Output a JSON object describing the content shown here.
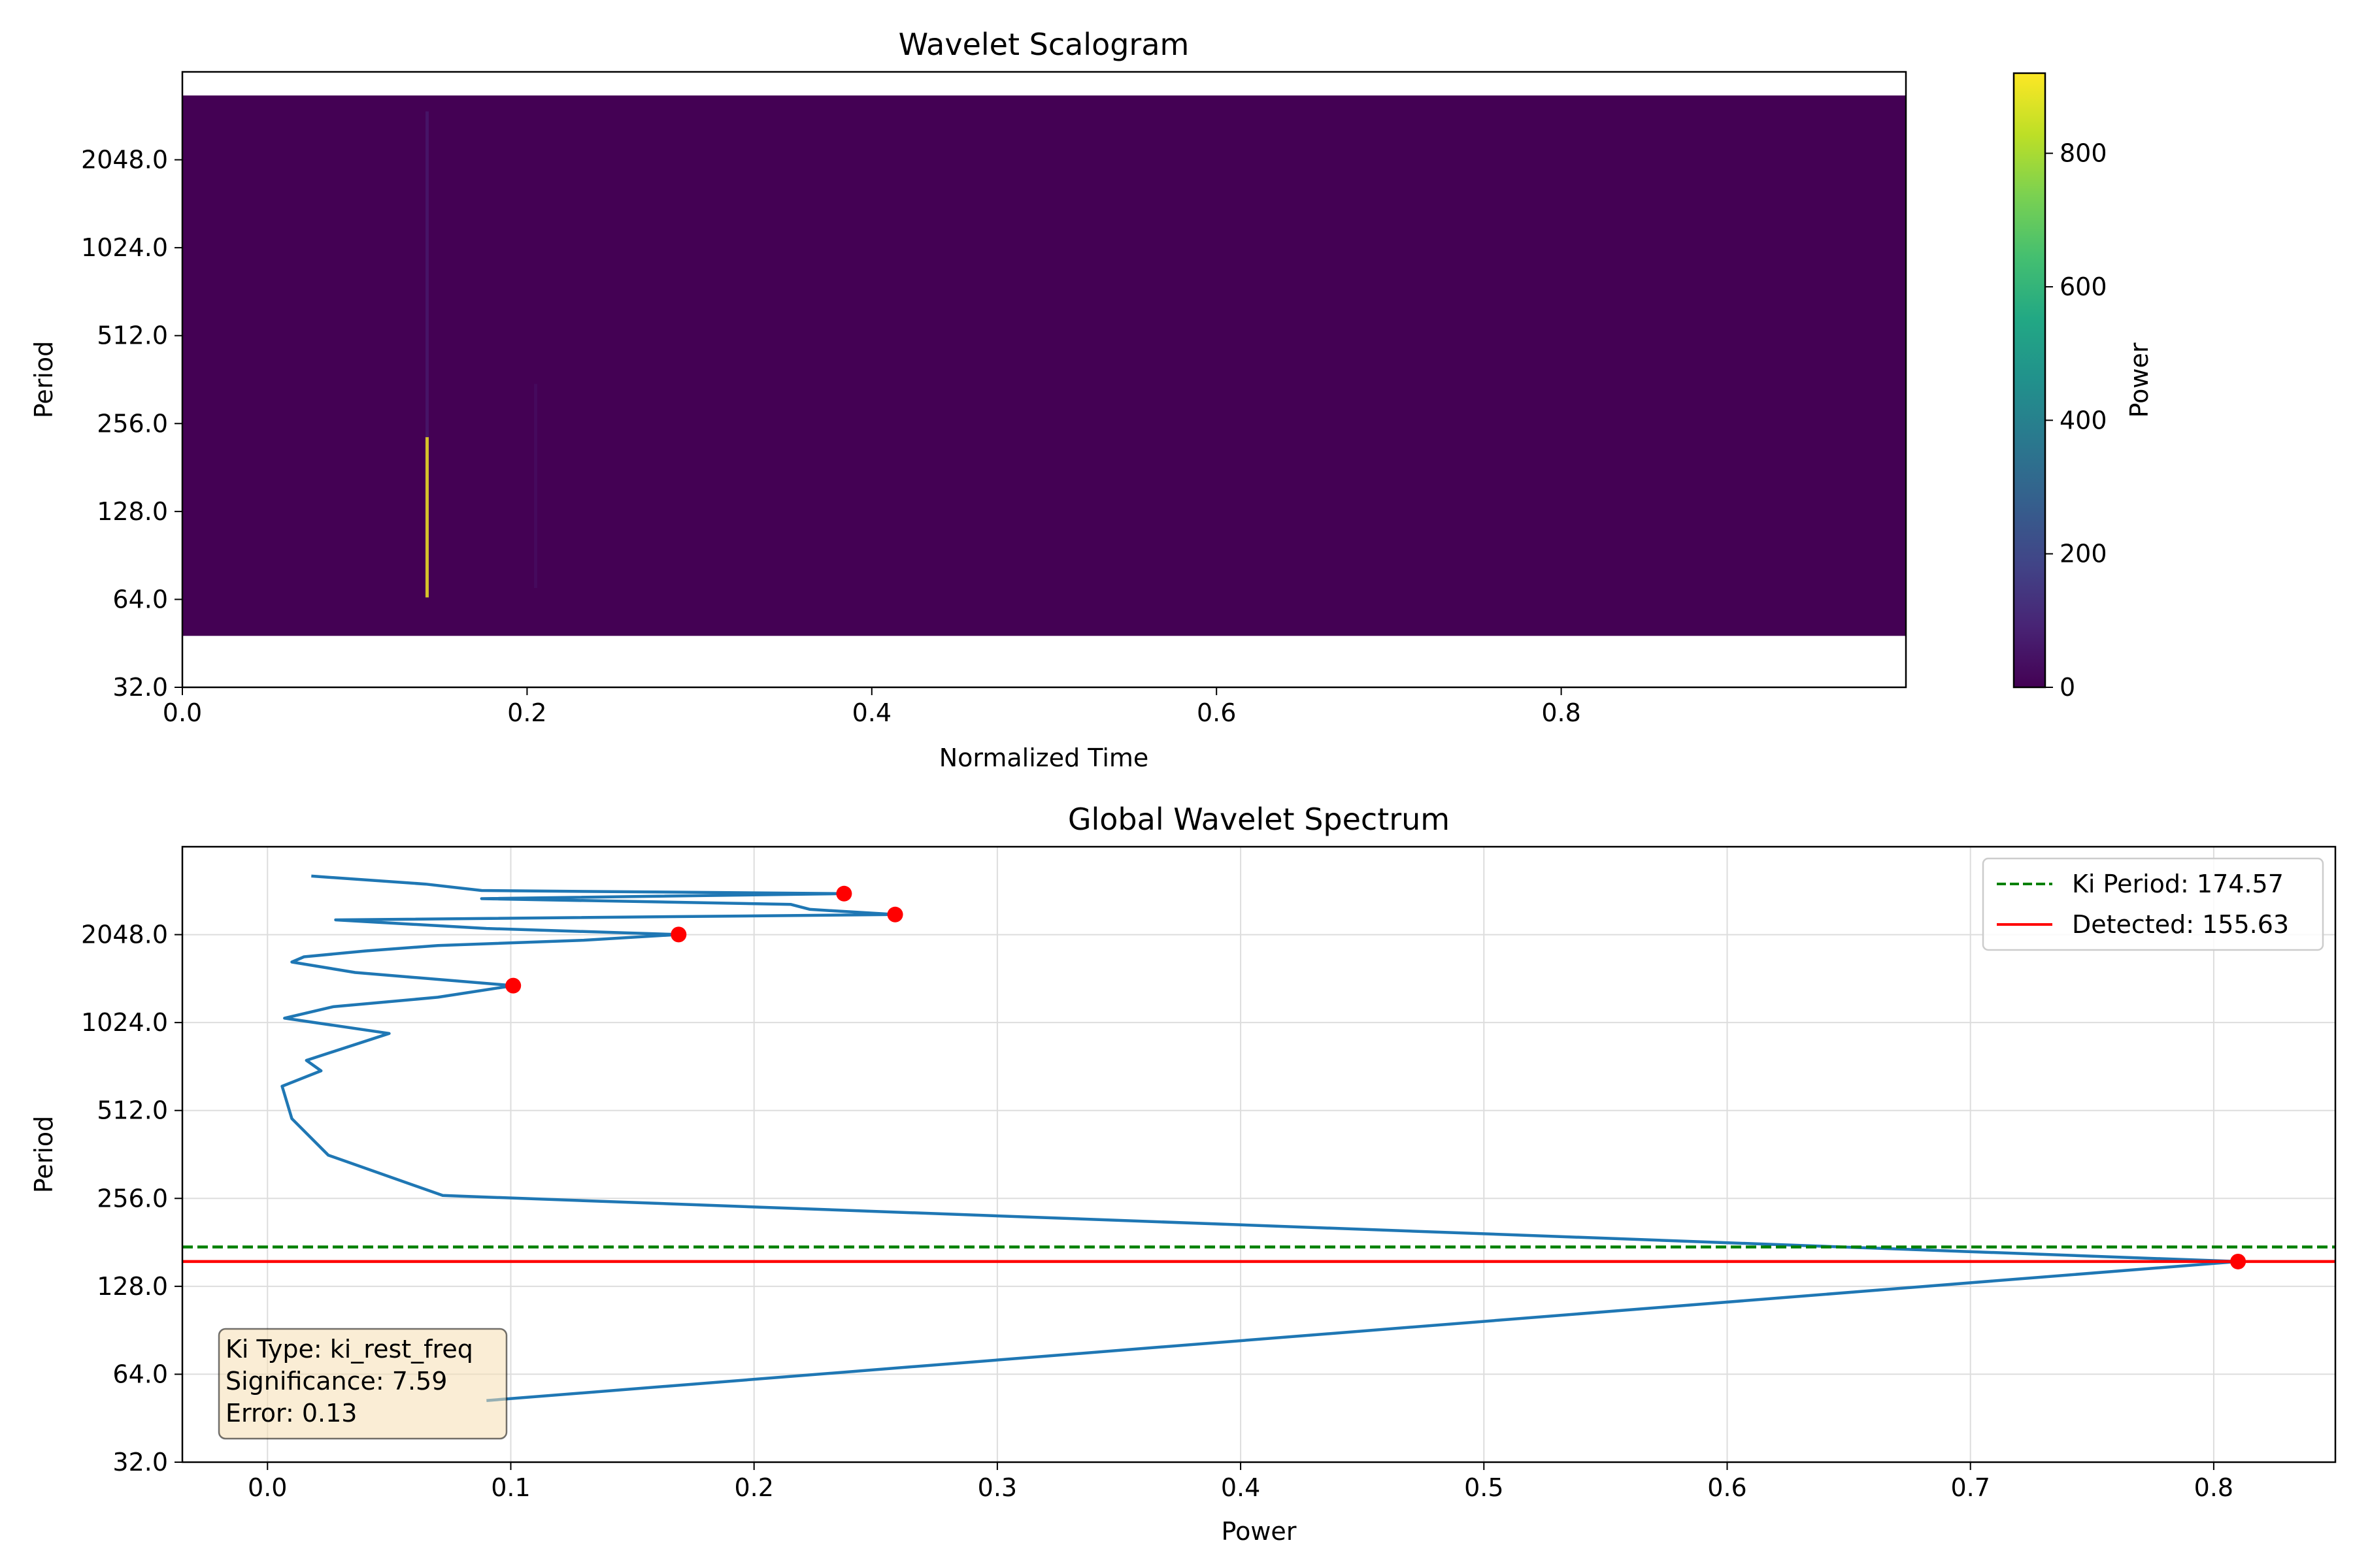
{
  "chart_data": [
    {
      "type": "heatmap",
      "title": "Wavelet Scalogram",
      "xlabel": "Normalized Time",
      "ylabel": "Period",
      "xlim": [
        0.0,
        1.0
      ],
      "ylim": [
        32.0,
        4096.0
      ],
      "y_scale": "log2",
      "x_ticks": [
        0.0,
        0.2,
        0.4,
        0.6,
        0.8
      ],
      "x_tick_labels": [
        "0.0",
        "0.2",
        "0.4",
        "0.6",
        "0.8"
      ],
      "y_ticks": [
        32,
        64,
        128,
        256,
        512,
        1024,
        2048
      ],
      "y_tick_labels": [
        "32.0",
        "64.0",
        "128.0",
        "256.0",
        "512.0",
        "1024.0",
        "2048.0"
      ],
      "period_range": [
        48,
        3400
      ],
      "background_power": 0,
      "features": [
        {
          "time": 0.142,
          "period_min": 65,
          "period_max": 230,
          "power": 900
        },
        {
          "time": 0.142,
          "period_min": 230,
          "period_max": 3000,
          "power": 60
        },
        {
          "time": 0.205,
          "period_min": 70,
          "period_max": 350,
          "power": 30
        }
      ],
      "colorbar": {
        "label": "Power",
        "min": 0,
        "max": 920,
        "ticks": [
          0,
          200,
          400,
          600,
          800
        ],
        "tick_labels": [
          "0",
          "200",
          "400",
          "600",
          "800"
        ],
        "colormap": "viridis"
      }
    },
    {
      "type": "line",
      "title": "Global Wavelet Spectrum",
      "xlabel": "Power",
      "ylabel": "Period",
      "xlim": [
        -0.035,
        0.85
      ],
      "ylim": [
        32.0,
        4096.0
      ],
      "y_scale": "log2",
      "grid": true,
      "x_ticks": [
        0.0,
        0.1,
        0.2,
        0.3,
        0.4,
        0.5,
        0.6,
        0.7,
        0.8
      ],
      "x_tick_labels": [
        "0.0",
        "0.1",
        "0.2",
        "0.3",
        "0.4",
        "0.5",
        "0.6",
        "0.7",
        "0.8"
      ],
      "y_ticks": [
        32,
        64,
        128,
        256,
        512,
        1024,
        2048
      ],
      "y_tick_labels": [
        "32.0",
        "64.0",
        "128.0",
        "256.0",
        "512.0",
        "1024.0",
        "2048.0"
      ],
      "series": [
        {
          "color": "#1f77b4",
          "points": [
            [
              0.09,
              52
            ],
            [
              0.81,
              155.6
            ],
            [
              0.072,
              262
            ],
            [
              0.025,
              360
            ],
            [
              0.01,
              480
            ],
            [
              0.006,
              620
            ],
            [
              0.022,
              700
            ],
            [
              0.016,
              760
            ],
            [
              0.05,
              940
            ],
            [
              0.007,
              1060
            ],
            [
              0.027,
              1160
            ],
            [
              0.07,
              1250
            ],
            [
              0.101,
              1370
            ],
            [
              0.036,
              1520
            ],
            [
              0.01,
              1650
            ],
            [
              0.015,
              1720
            ],
            [
              0.04,
              1800
            ],
            [
              0.07,
              1880
            ],
            [
              0.13,
              1960
            ],
            [
              0.169,
              2050
            ],
            [
              0.09,
              2150
            ],
            [
              0.028,
              2300
            ],
            [
              0.258,
              2400
            ],
            [
              0.223,
              2500
            ],
            [
              0.215,
              2600
            ],
            [
              0.088,
              2720
            ],
            [
              0.237,
              2830
            ],
            [
              0.088,
              2900
            ],
            [
              0.065,
              3050
            ],
            [
              0.018,
              3250
            ]
          ]
        }
      ],
      "markers": [
        {
          "x": 0.81,
          "y": 155.6
        },
        {
          "x": 0.101,
          "y": 1370
        },
        {
          "x": 0.169,
          "y": 2050
        },
        {
          "x": 0.258,
          "y": 2400
        },
        {
          "x": 0.237,
          "y": 2830
        }
      ],
      "marker_color": "#ff0000",
      "hlines": [
        {
          "y": 174.57,
          "color": "#008000",
          "style": "dashed"
        },
        {
          "y": 155.63,
          "color": "#ff0000",
          "style": "solid"
        }
      ],
      "legend": {
        "placement": "top-right",
        "entries": [
          "Ki Period: 174.57",
          "Detected: 155.63"
        ]
      },
      "annotation": {
        "lines": [
          "Ki Type: ki_rest_freq",
          "Significance: 7.59",
          "Error: 0.13"
        ],
        "placement": "bottom-left",
        "background": "#f5deb3"
      }
    }
  ]
}
